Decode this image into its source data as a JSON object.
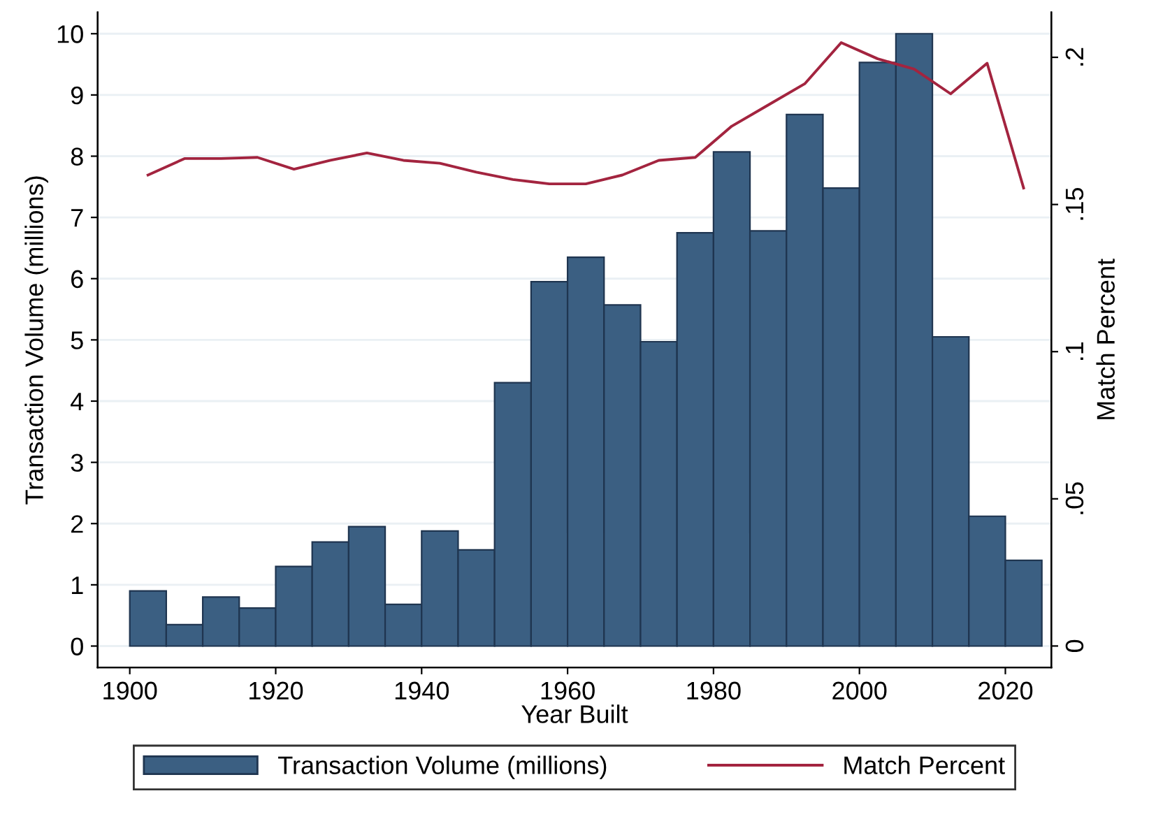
{
  "chart_data": {
    "type": "histogram",
    "xlabel": "Year Built",
    "ylabel": "Transaction Volume (millions)",
    "y2label": "Match Percent",
    "bins": [
      1900,
      1905,
      1910,
      1915,
      1920,
      1925,
      1930,
      1935,
      1940,
      1945,
      1950,
      1955,
      1960,
      1965,
      1970,
      1975,
      1980,
      1985,
      1990,
      1995,
      2000,
      2005,
      2010,
      2015,
      2020,
      2025
    ],
    "series": [
      {
        "name": "Transaction Volume (millions)",
        "color": "#3b5f82",
        "values": [
          0.9,
          0.35,
          0.8,
          0.62,
          1.3,
          1.7,
          1.95,
          0.68,
          1.88,
          1.57,
          4.3,
          5.95,
          6.35,
          5.57,
          4.97,
          6.75,
          8.07,
          6.78,
          8.68,
          7.48,
          9.53,
          10.0,
          5.05,
          2.12,
          1.4
        ]
      },
      {
        "name": "Match Percent",
        "type": "line",
        "axis": "y2",
        "color": "#a3243f",
        "x": [
          1902.5,
          1907.5,
          1912.5,
          1917.5,
          1922.5,
          1927.5,
          1932.5,
          1937.5,
          1942.5,
          1947.5,
          1952.5,
          1957.5,
          1962.5,
          1967.5,
          1972.5,
          1977.5,
          1982.5,
          1987.5,
          1992.5,
          1997.5,
          2002.5,
          2007.5,
          2012.5,
          2017.5,
          2022.5
        ],
        "values": [
          0.16,
          0.1656,
          0.1656,
          0.166,
          0.162,
          0.165,
          0.1675,
          0.165,
          0.164,
          0.161,
          0.1585,
          0.157,
          0.157,
          0.16,
          0.165,
          0.166,
          0.1766,
          0.1838,
          0.191,
          0.205,
          0.1995,
          0.196,
          0.1876,
          0.198,
          0.1556
        ]
      }
    ],
    "xlim": [
      1895.6,
      2026.3
    ],
    "xticks": [
      1900,
      1920,
      1940,
      1960,
      1980,
      2000,
      2020
    ],
    "ylim": [
      -0.35,
      10.35
    ],
    "yticks": [
      0,
      1,
      2,
      3,
      4,
      5,
      6,
      7,
      8,
      9,
      10
    ],
    "y2lim": [
      -0.0073,
      0.2153
    ],
    "y2ticks": [
      {
        "value": 0,
        "label": "0"
      },
      {
        "value": 0.05,
        "label": ".05"
      },
      {
        "value": 0.1,
        "label": ".1"
      },
      {
        "value": 0.15,
        "label": ".15"
      },
      {
        "value": 0.2,
        "label": ".2"
      }
    ],
    "grid": "y",
    "legend": "bottom",
    "marker": "none",
    "line_style": "solid"
  }
}
